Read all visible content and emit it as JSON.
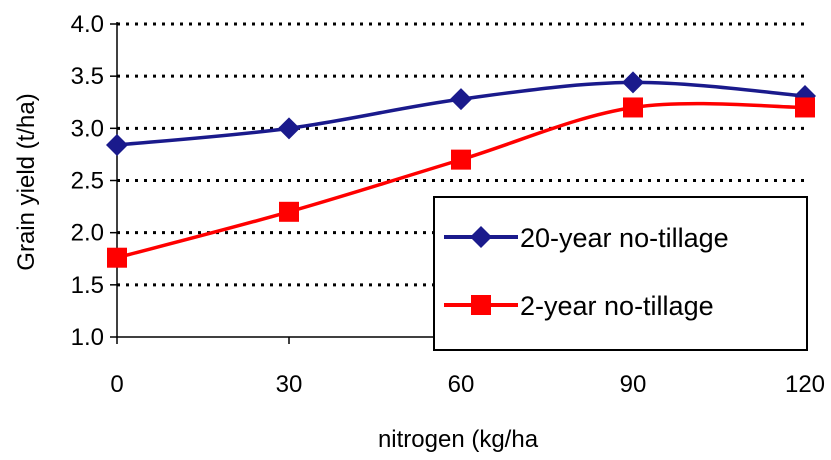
{
  "chart_data": {
    "type": "line",
    "title": "",
    "xlabel": "nitrogen (kg/ha",
    "ylabel": "Grain yield  (t/ha)",
    "x": [
      0,
      30,
      60,
      90,
      120
    ],
    "x_ticks": [
      "0",
      "30",
      "60",
      "90",
      "120"
    ],
    "y_ticks": [
      "1.0",
      "1.5",
      "2.0",
      "2.5",
      "3.0",
      "3.5",
      "4.0"
    ],
    "xlim": [
      0,
      120
    ],
    "ylim": [
      1.0,
      4.0
    ],
    "grid": "horizontal-dotted",
    "legend_position": "bottom-right",
    "series": [
      {
        "name": "20-year no-tillage",
        "values": [
          2.84,
          3.0,
          3.28,
          3.44,
          3.31
        ],
        "color": "#1a1a8c",
        "marker": "diamond"
      },
      {
        "name": "2-year no-tillage",
        "values": [
          1.76,
          2.2,
          2.7,
          3.2,
          3.2
        ],
        "color": "#ff0000",
        "marker": "square"
      }
    ]
  }
}
